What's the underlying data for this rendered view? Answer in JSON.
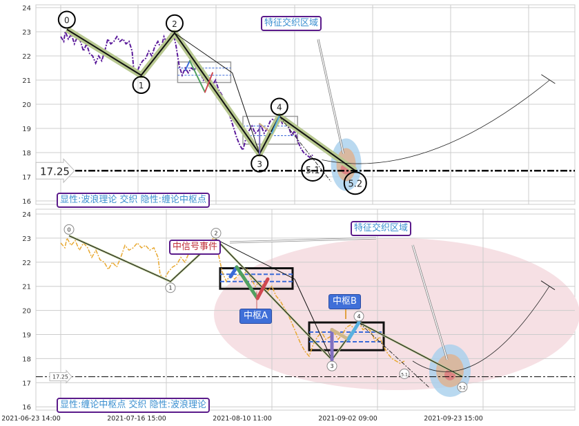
{
  "chart_data": [
    {
      "type": "line",
      "panel": "top",
      "title": "",
      "ylim": [
        16,
        24
      ],
      "yticks": [
        16,
        17,
        18,
        19,
        20,
        21,
        22,
        23,
        24
      ],
      "xlim": [
        0,
        339
      ],
      "legend_box": "显性:波浪理论 交织 隐性:缠论中枢点",
      "annotation": "特征交织区域",
      "price_line_label": "17.25",
      "price_line_value": 17.25
    },
    {
      "type": "line",
      "panel": "bottom",
      "ylim": [
        16,
        24
      ],
      "yticks": [
        16,
        17,
        18,
        19,
        20,
        21,
        22,
        23,
        24
      ],
      "xlim": [
        0,
        248
      ],
      "xticks": [
        {
          "x": 0,
          "label": "2021-06-23 14:00"
        },
        {
          "x": 51,
          "label": "2021-07-16 15:00"
        },
        {
          "x": 102,
          "label": "2021-08-10 11:00"
        },
        {
          "x": 153,
          "label": "2021-09-02 09:00"
        },
        {
          "x": 204,
          "label": "2021-09-23 15:00"
        }
      ],
      "legend_box": "显性:缠论中枢点 交织 隐性:波浪理论",
      "annotation": "特征交织区域",
      "signal_label": "中信号事件",
      "pivot_a_label": "中枢A",
      "pivot_b_label": "中枢B",
      "price_line_label": "17.25",
      "price_line_value": 17.25
    }
  ],
  "waves": [
    {
      "label": "0",
      "x": 4,
      "y": 23.1
    },
    {
      "label": "1",
      "x": 53,
      "y": 21.2
    },
    {
      "label": "2",
      "x": 75,
      "y": 22.95
    },
    {
      "label": "3",
      "x": 131,
      "y": 17.95
    },
    {
      "label": "4",
      "x": 144,
      "y": 19.5
    },
    {
      "label": "5.1",
      "x": 166,
      "y": 17.8
    },
    {
      "label": "5.2",
      "x": 194,
      "y": 17.25
    }
  ],
  "pivots": [
    {
      "name": "A",
      "x0": 77,
      "x1": 112,
      "low": 20.9,
      "high": 21.75,
      "inner_low": 21.2,
      "inner_high": 21.5
    },
    {
      "name": "B",
      "x0": 120,
      "x1": 156,
      "low": 18.35,
      "high": 19.5,
      "inner_low": 18.7,
      "inner_high": 19.1
    }
  ],
  "price": [
    [
      0,
      22.8
    ],
    [
      2,
      22.6
    ],
    [
      3,
      23.0
    ],
    [
      5,
      22.7
    ],
    [
      7,
      22.9
    ],
    [
      9,
      22.5
    ],
    [
      11,
      22.8
    ],
    [
      13,
      22.6
    ],
    [
      15,
      22.2
    ],
    [
      17,
      22.5
    ],
    [
      19,
      22.1
    ],
    [
      21,
      22.0
    ],
    [
      23,
      21.7
    ],
    [
      25,
      22.0
    ],
    [
      27,
      21.8
    ],
    [
      29,
      22.2
    ],
    [
      31,
      22.7
    ],
    [
      33,
      22.5
    ],
    [
      35,
      22.6
    ],
    [
      37,
      22.8
    ],
    [
      39,
      22.6
    ],
    [
      41,
      22.7
    ],
    [
      43,
      22.5
    ],
    [
      45,
      22.6
    ],
    [
      47,
      22.2
    ],
    [
      48,
      21.5
    ],
    [
      50,
      21.3
    ],
    [
      52,
      21.6
    ],
    [
      54,
      21.8
    ],
    [
      56,
      21.9
    ],
    [
      58,
      22.2
    ],
    [
      60,
      22.0
    ],
    [
      62,
      22.4
    ],
    [
      64,
      22.6
    ],
    [
      66,
      22.3
    ],
    [
      68,
      22.8
    ],
    [
      70,
      22.5
    ],
    [
      72,
      22.9
    ],
    [
      74,
      23.0
    ],
    [
      76,
      22.4
    ],
    [
      78,
      21.6
    ],
    [
      80,
      21.2
    ],
    [
      82,
      21.5
    ],
    [
      84,
      21.3
    ],
    [
      86,
      21.5
    ],
    [
      88,
      21.4
    ],
    [
      90,
      21.7
    ],
    [
      92,
      21.3
    ],
    [
      94,
      21.0
    ],
    [
      96,
      21.2
    ],
    [
      98,
      21.0
    ],
    [
      100,
      20.8
    ],
    [
      102,
      21.0
    ],
    [
      104,
      20.6
    ],
    [
      106,
      20.4
    ],
    [
      108,
      20.1
    ],
    [
      110,
      19.8
    ],
    [
      112,
      19.4
    ],
    [
      114,
      19.0
    ],
    [
      116,
      18.6
    ],
    [
      118,
      18.3
    ],
    [
      120,
      18.1
    ],
    [
      122,
      18.6
    ],
    [
      124,
      18.9
    ],
    [
      126,
      19.1
    ],
    [
      128,
      18.8
    ],
    [
      130,
      18.9
    ],
    [
      132,
      19.1
    ],
    [
      134,
      18.8
    ],
    [
      136,
      19.0
    ],
    [
      138,
      19.3
    ],
    [
      140,
      19.4
    ],
    [
      142,
      19.2
    ],
    [
      144,
      19.5
    ],
    [
      146,
      19.2
    ],
    [
      148,
      19.3
    ],
    [
      150,
      19.1
    ],
    [
      152,
      18.7
    ],
    [
      154,
      18.9
    ],
    [
      156,
      18.5
    ],
    [
      158,
      18.2
    ],
    [
      160,
      18.0
    ],
    [
      162,
      17.9
    ],
    [
      164,
      17.8
    ],
    [
      166,
      17.9
    ]
  ],
  "colors": {
    "top_price": "#5a1a9a",
    "bottom_price": "#e8a830",
    "wave_under": "#b8c890",
    "ellipse": "#f6e0e4",
    "target_outer": "#a8d0ec",
    "target_inner": "#d8b8a0",
    "target_core": "#e06070",
    "pivot_dash": "#3a6ad8"
  }
}
